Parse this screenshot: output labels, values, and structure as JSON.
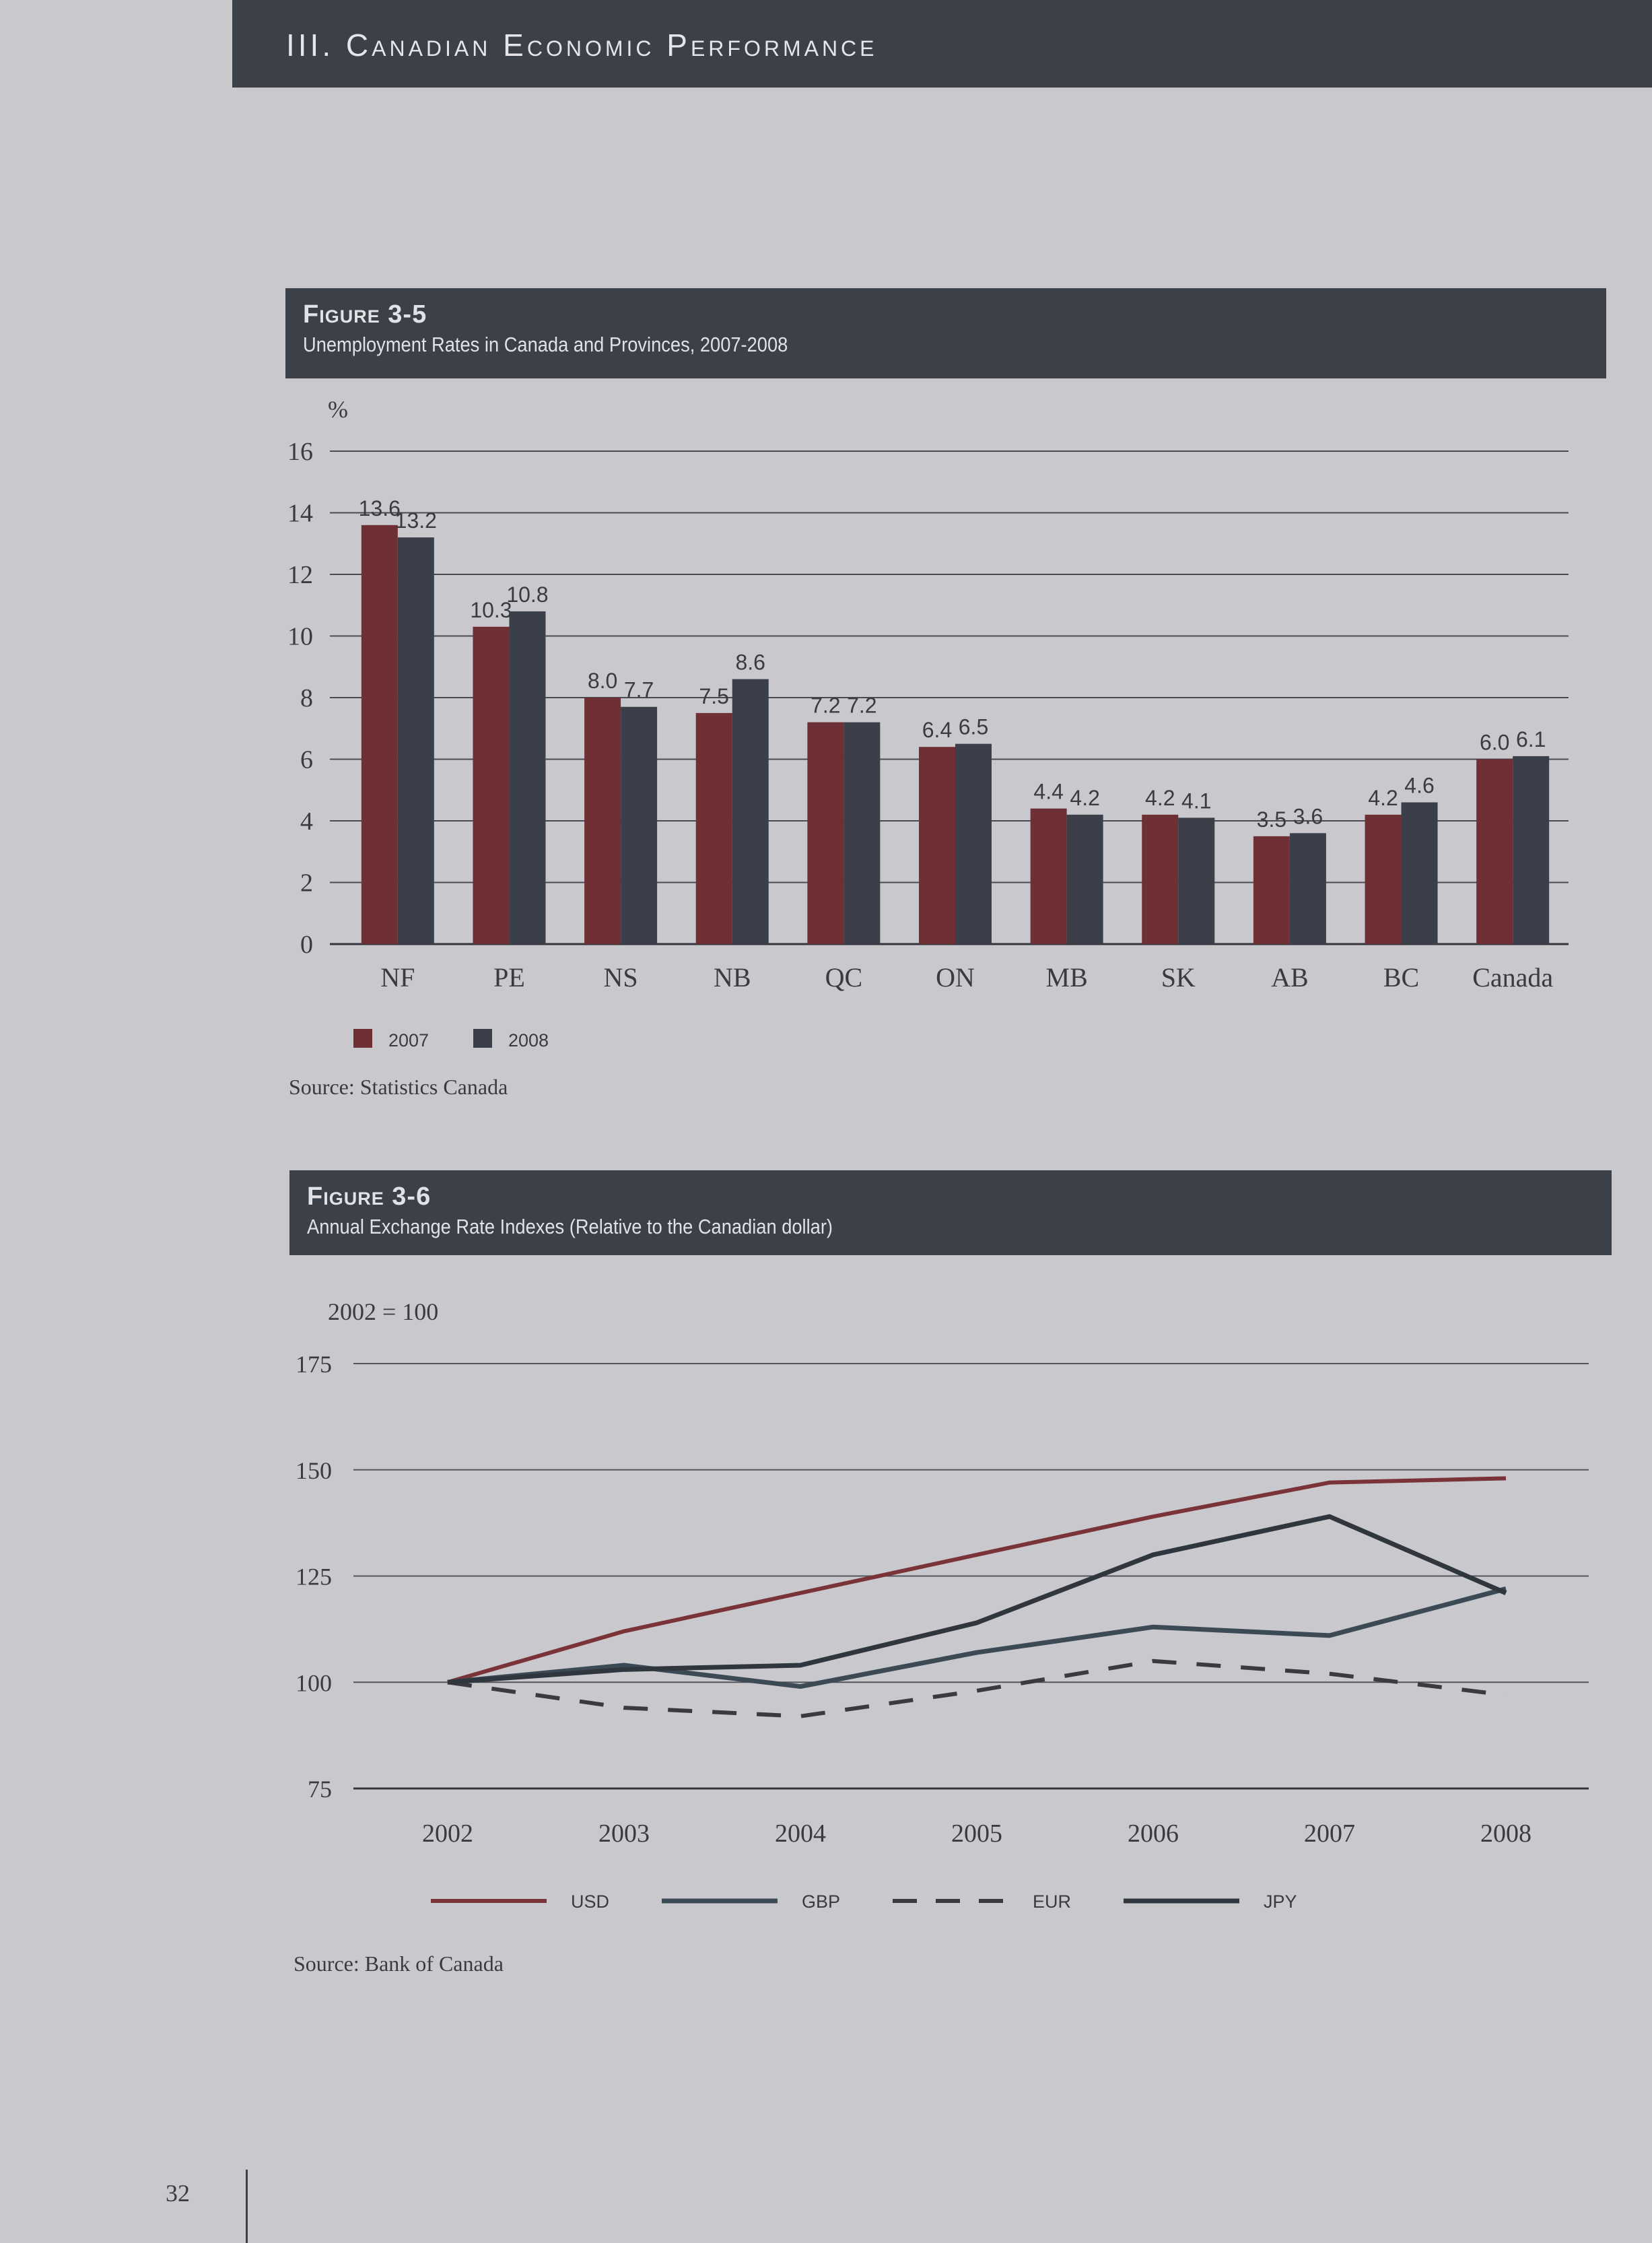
{
  "header": {
    "title": "III. Canadian Economic Performance"
  },
  "figure1": {
    "label": "Figure 3-5",
    "title": "Unemployment Rates in Canada and Provinces, 2007-2008",
    "source": "Source: Statistics Canada"
  },
  "figure2": {
    "label": "Figure 3-6",
    "title": "Annual Exchange Rate Indexes (Relative to the Canadian dollar)",
    "source": "Source: Bank of Canada"
  },
  "page_number": "32",
  "colors": {
    "s2007": "#6e2f35",
    "s2008": "#3b3f49",
    "usd": "#7a3338",
    "gbp": "#3c4a55",
    "eur": "#3a3a40",
    "jpy": "#30363e"
  },
  "chart_data": [
    {
      "type": "bar",
      "unit_label": "%",
      "categories": [
        "NF",
        "PE",
        "NS",
        "NB",
        "QC",
        "ON",
        "MB",
        "SK",
        "AB",
        "BC",
        "Canada"
      ],
      "series": [
        {
          "name": "2007",
          "values": [
            13.6,
            10.3,
            8.0,
            7.5,
            7.2,
            6.4,
            4.4,
            4.2,
            3.5,
            4.2,
            6.0
          ],
          "labels": [
            "13.6",
            "10.3",
            "8.0",
            "7.5",
            "7.2",
            "6.4",
            "4.4",
            "4.2",
            "3.5",
            "4.2",
            "6.0"
          ]
        },
        {
          "name": "2008",
          "values": [
            13.2,
            10.8,
            7.7,
            8.6,
            7.2,
            6.5,
            4.2,
            4.1,
            3.6,
            4.6,
            6.1
          ],
          "labels": [
            "13.2",
            "10.8",
            "7.7",
            "8.6",
            "7.2",
            "6.5",
            "4.2",
            "4.1",
            "3.6",
            "4.6",
            "6.1"
          ]
        }
      ],
      "ylim": [
        0,
        16
      ],
      "yticks": [
        "0",
        "2",
        "4",
        "6",
        "8",
        "10",
        "12",
        "14",
        "16"
      ],
      "grid": true,
      "legend": "bottom-left"
    },
    {
      "type": "line",
      "unit_label": "2002 = 100",
      "x": [
        "2002",
        "2003",
        "2004",
        "2005",
        "2006",
        "2007",
        "2008"
      ],
      "series": [
        {
          "name": "USD",
          "values": [
            100,
            112,
            121,
            130,
            139,
            147,
            148
          ]
        },
        {
          "name": "GBP",
          "values": [
            100,
            104,
            99,
            107,
            113,
            111,
            122
          ]
        },
        {
          "name": "EUR",
          "values": [
            100,
            94,
            92,
            98,
            105,
            102,
            97
          ]
        },
        {
          "name": "JPY",
          "values": [
            100,
            103,
            104,
            114,
            130,
            139,
            121
          ]
        }
      ],
      "ylim": [
        75,
        175
      ],
      "yticks": [
        "75",
        "100",
        "125",
        "150",
        "175"
      ],
      "grid": true,
      "legend": "bottom"
    }
  ]
}
